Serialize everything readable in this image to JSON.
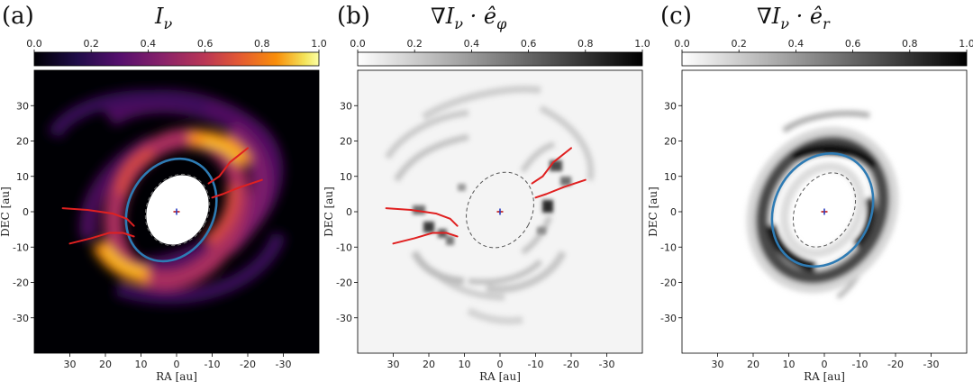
{
  "chart_data": [
    {
      "type": "heatmap",
      "panel_label": "(a)",
      "title": "I_ν",
      "title_main": "I",
      "title_sub": "ν",
      "colormap": "inferno",
      "colorbar": {
        "min": 0.0,
        "max": 1.0,
        "ticks": [
          "0.0",
          "0.2",
          "0.4",
          "0.6",
          "0.8",
          "1.0"
        ]
      },
      "xlabel": "RA [au]",
      "ylabel": "DEC [au]",
      "xlim": [
        40,
        -40
      ],
      "ylim": [
        -40,
        40
      ],
      "xticks": [
        30,
        20,
        10,
        0,
        -10,
        -20,
        -30
      ],
      "yticks": [
        30,
        20,
        10,
        0,
        -10,
        -20,
        -30
      ],
      "ellipse": {
        "center": [
          1.5,
          0.5
        ],
        "semi_axes": [
          15,
          12
        ],
        "rotation_deg": 62,
        "color": "#2e7bb4"
      },
      "inner_hole": {
        "center": [
          1,
          0.5
        ],
        "semi_axes": [
          10,
          8
        ],
        "rotation_deg": 62
      },
      "spiral_markers": [
        {
          "x": [
            32,
            25,
            18,
            14,
            12
          ],
          "y": [
            1,
            0.5,
            -0.5,
            -2,
            -4
          ],
          "color": "#e02020"
        },
        {
          "x": [
            30,
            24,
            19,
            15,
            12
          ],
          "y": [
            -9,
            -7.5,
            -6,
            -6,
            -7
          ],
          "color": "#e02020"
        },
        {
          "x": [
            -20,
            -15,
            -12,
            -9
          ],
          "y": [
            18,
            14,
            10,
            8
          ],
          "color": "#e02020"
        },
        {
          "x": [
            -24,
            -18,
            -13,
            -10
          ],
          "y": [
            9,
            7,
            5,
            4
          ],
          "color": "#e02020"
        }
      ],
      "star": {
        "x": 0,
        "y": 0
      },
      "grid": false
    },
    {
      "type": "heatmap",
      "panel_label": "(b)",
      "title": "∇I_ν · ê_φ",
      "title_main": "∇I",
      "title_sub": "ν",
      "title_dot": " · ê",
      "title_sub2": "φ",
      "colormap": "gray_r",
      "colorbar": {
        "min": 0.0,
        "max": 1.0,
        "ticks": [
          "0.0",
          "0.2",
          "0.4",
          "0.6",
          "0.8",
          "1.0"
        ]
      },
      "xlabel": "RA [au]",
      "ylabel": "DEC [au]",
      "xlim": [
        40,
        -40
      ],
      "ylim": [
        -40,
        40
      ],
      "xticks": [
        30,
        20,
        10,
        0,
        -10,
        -20,
        -30
      ],
      "yticks": [
        30,
        20,
        10,
        0,
        -10,
        -20,
        -30
      ],
      "dashed_ellipse": {
        "center": [
          0,
          0.5
        ],
        "semi_axes": [
          11,
          9
        ],
        "rotation_deg": 62
      },
      "spiral_markers": [
        {
          "x": [
            32,
            25,
            18,
            14,
            12
          ],
          "y": [
            1,
            0.5,
            -0.5,
            -2,
            -4
          ],
          "color": "#e02020"
        },
        {
          "x": [
            30,
            24,
            19,
            15,
            12
          ],
          "y": [
            -9,
            -7.5,
            -6,
            -6,
            -7
          ],
          "color": "#e02020"
        },
        {
          "x": [
            -20,
            -15,
            -12,
            -9
          ],
          "y": [
            18,
            14,
            10,
            8
          ],
          "color": "#e02020"
        },
        {
          "x": [
            -24,
            -18,
            -13,
            -10
          ],
          "y": [
            9,
            7,
            5,
            4
          ],
          "color": "#e02020"
        }
      ],
      "star": {
        "x": 0,
        "y": 0
      },
      "grid": false
    },
    {
      "type": "heatmap",
      "panel_label": "(c)",
      "title": "∇I_ν · ê_r",
      "title_main": "∇I",
      "title_sub": "ν",
      "title_dot": " · ê",
      "title_sub2": "r",
      "colormap": "gray_r",
      "colorbar": {
        "min": 0.0,
        "max": 1.0,
        "ticks": [
          "0.0",
          "0.2",
          "0.4",
          "0.6",
          "0.8",
          "1.0"
        ]
      },
      "xlabel": "RA [au]",
      "ylabel": "DEC [au]",
      "xlim": [
        40,
        -40
      ],
      "ylim": [
        -40,
        40
      ],
      "xticks": [
        30,
        20,
        10,
        0,
        -10,
        -20,
        -30
      ],
      "yticks": [
        30,
        20,
        10,
        0,
        -10,
        -20,
        -30
      ],
      "ellipse": {
        "center": [
          0.5,
          0.5
        ],
        "semi_axes": [
          16.5,
          13.5
        ],
        "rotation_deg": 62,
        "color": "#2e7bb4"
      },
      "dashed_ellipse": {
        "center": [
          0,
          0.5
        ],
        "semi_axes": [
          11,
          8
        ],
        "rotation_deg": 62
      },
      "star": {
        "x": 0,
        "y": 0
      },
      "grid": false
    }
  ]
}
